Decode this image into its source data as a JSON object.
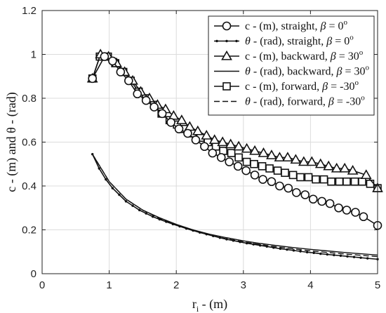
{
  "chart_data": {
    "type": "line",
    "title": "",
    "xlabel": "r_i - (m)",
    "ylabel": "c - (m) and θ - (rad)",
    "xlim": [
      0,
      5
    ],
    "ylim": [
      0,
      1.2
    ],
    "xticks": [
      0,
      1,
      2,
      3,
      4,
      5
    ],
    "yticks": [
      0,
      0.2,
      0.4,
      0.6,
      0.8,
      1,
      1.2
    ],
    "grid": true,
    "legend": "top-right",
    "series": [
      {
        "name": "c - (m), straight, β = 0°",
        "legend_parts": [
          "c - (m), straight, ",
          "β",
          " = 0",
          "o"
        ],
        "style": "circle-line",
        "x": [
          0.75,
          0.93,
          1.05,
          1.17,
          1.29,
          1.42,
          1.55,
          1.67,
          1.79,
          1.92,
          2.04,
          2.17,
          2.29,
          2.42,
          2.54,
          2.67,
          2.79,
          2.92,
          3.04,
          3.17,
          3.29,
          3.42,
          3.54,
          3.67,
          3.79,
          3.92,
          4.04,
          4.17,
          4.29,
          4.42,
          4.54,
          4.67,
          4.79,
          5.0
        ],
        "y": [
          0.89,
          0.99,
          0.97,
          0.92,
          0.88,
          0.82,
          0.79,
          0.76,
          0.73,
          0.69,
          0.66,
          0.64,
          0.61,
          0.58,
          0.55,
          0.53,
          0.51,
          0.49,
          0.47,
          0.45,
          0.43,
          0.42,
          0.4,
          0.39,
          0.37,
          0.36,
          0.34,
          0.33,
          0.32,
          0.3,
          0.29,
          0.28,
          0.26,
          0.22
        ]
      },
      {
        "name": "θ - (rad), straight, β = 0°",
        "legend_parts": [
          "θ",
          " - (rad), straight,  ",
          "β",
          " = 0",
          "o"
        ],
        "style": "dot-line",
        "x": [
          0.75,
          0.85,
          0.95,
          1.05,
          1.15,
          1.25,
          1.35,
          1.45,
          1.55,
          1.65,
          1.75,
          1.85,
          1.95,
          2.05,
          2.15,
          2.25,
          2.35,
          2.45,
          2.55,
          2.65,
          2.75,
          2.85,
          2.95,
          3.05,
          3.15,
          3.25,
          3.35,
          3.45,
          3.55,
          3.65,
          3.75,
          3.85,
          3.95,
          4.05,
          4.15,
          4.25,
          4.35,
          4.45,
          4.55,
          4.65,
          4.75,
          4.85,
          5.0
        ],
        "y": [
          0.545,
          0.48,
          0.43,
          0.39,
          0.36,
          0.33,
          0.31,
          0.29,
          0.275,
          0.26,
          0.248,
          0.237,
          0.226,
          0.216,
          0.206,
          0.197,
          0.188,
          0.18,
          0.172,
          0.164,
          0.157,
          0.151,
          0.145,
          0.139,
          0.134,
          0.129,
          0.124,
          0.119,
          0.114,
          0.11,
          0.106,
          0.102,
          0.098,
          0.095,
          0.091,
          0.088,
          0.085,
          0.082,
          0.079,
          0.076,
          0.073,
          0.07,
          0.066
        ]
      },
      {
        "name": "c - (m), backward, β = 30°",
        "legend_parts": [
          "c - (m), backward, ",
          "β",
          " = 30",
          "o"
        ],
        "style": "triangle-line",
        "x": [
          0.75,
          0.87,
          0.99,
          1.11,
          1.23,
          1.35,
          1.47,
          1.6,
          1.72,
          1.84,
          1.96,
          2.08,
          2.2,
          2.32,
          2.45,
          2.57,
          2.69,
          2.81,
          2.93,
          3.05,
          3.17,
          3.3,
          3.42,
          3.54,
          3.66,
          3.78,
          3.9,
          4.02,
          4.15,
          4.27,
          4.39,
          4.51,
          4.63,
          4.83,
          5.0
        ],
        "y": [
          0.89,
          1.0,
          0.99,
          0.96,
          0.92,
          0.88,
          0.83,
          0.8,
          0.77,
          0.75,
          0.72,
          0.7,
          0.67,
          0.65,
          0.63,
          0.61,
          0.6,
          0.59,
          0.58,
          0.57,
          0.56,
          0.55,
          0.54,
          0.53,
          0.53,
          0.52,
          0.51,
          0.51,
          0.5,
          0.49,
          0.48,
          0.48,
          0.47,
          0.45,
          0.39
        ]
      },
      {
        "name": "θ - (rad), backward, β = 30°",
        "legend_parts": [
          "θ",
          " - (rad), backward, ",
          "β",
          " = 30",
          "o"
        ],
        "style": "solid-line",
        "x": [
          0.75,
          1.0,
          1.25,
          1.5,
          1.75,
          2.0,
          2.25,
          2.5,
          2.75,
          3.0,
          3.25,
          3.5,
          3.75,
          4.0,
          4.25,
          4.5,
          4.75,
          5.0
        ],
        "y": [
          0.545,
          0.42,
          0.34,
          0.29,
          0.255,
          0.225,
          0.2,
          0.18,
          0.164,
          0.15,
          0.138,
          0.128,
          0.119,
          0.111,
          0.104,
          0.097,
          0.091,
          0.085
        ]
      },
      {
        "name": "c - (m), forward, β = -30°",
        "legend_parts": [
          "c - (m), forward,  ",
          "β",
          " = -30",
          "o"
        ],
        "style": "square-line",
        "x": [
          0.75,
          0.86,
          0.98,
          1.09,
          1.21,
          1.32,
          1.44,
          1.55,
          1.67,
          1.78,
          1.9,
          2.01,
          2.13,
          2.24,
          2.36,
          2.47,
          2.59,
          2.7,
          2.82,
          2.93,
          3.05,
          3.16,
          3.28,
          3.39,
          3.51,
          3.62,
          3.74,
          3.85,
          3.97,
          4.08,
          4.2,
          4.31,
          4.43,
          4.54,
          4.66,
          4.77,
          4.89,
          5.0
        ],
        "y": [
          0.89,
          0.99,
          0.99,
          0.96,
          0.92,
          0.88,
          0.83,
          0.8,
          0.77,
          0.73,
          0.7,
          0.68,
          0.66,
          0.64,
          0.62,
          0.6,
          0.58,
          0.56,
          0.55,
          0.53,
          0.51,
          0.5,
          0.49,
          0.48,
          0.47,
          0.46,
          0.45,
          0.44,
          0.44,
          0.43,
          0.43,
          0.42,
          0.42,
          0.42,
          0.42,
          0.42,
          0.41,
          0.39
        ]
      },
      {
        "name": "θ - (rad), forward, β = -30°",
        "legend_parts": [
          "θ",
          " - (rad), forward, ",
          "β",
          " = -30",
          "o"
        ],
        "style": "dashed-line",
        "x": [
          0.75,
          1.0,
          1.25,
          1.5,
          1.75,
          2.0,
          2.25,
          2.5,
          2.75,
          3.0,
          3.25,
          3.5,
          3.75,
          4.0,
          4.25,
          4.5,
          4.75,
          5.0
        ],
        "y": [
          0.545,
          0.42,
          0.34,
          0.29,
          0.252,
          0.221,
          0.196,
          0.176,
          0.159,
          0.145,
          0.133,
          0.122,
          0.113,
          0.104,
          0.097,
          0.09,
          0.084,
          0.078
        ]
      }
    ]
  }
}
